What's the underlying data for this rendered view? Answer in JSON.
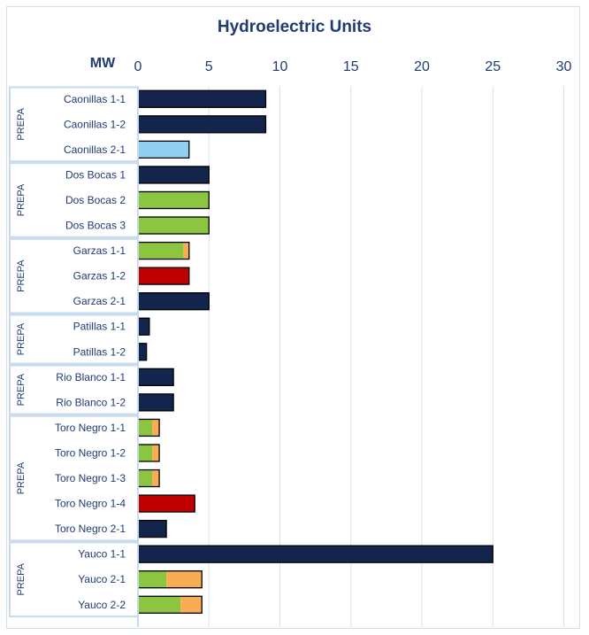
{
  "chart_data": {
    "type": "bar",
    "orientation": "horizontal",
    "stacked": true,
    "title": "Hydroelectric Units",
    "xlabel": "MW",
    "xlim": [
      0,
      30
    ],
    "xticks": [
      0,
      5,
      10,
      15,
      20,
      25,
      30
    ],
    "grid": true,
    "groups": [
      {
        "label": "PREPA",
        "categories": [
          "Caonillas 1-1",
          "Caonillas 1-2",
          "Caonillas 2-1"
        ]
      },
      {
        "label": "PREPA",
        "categories": [
          "Dos Bocas 1",
          "Dos Bocas 2",
          "Dos Bocas 3"
        ]
      },
      {
        "label": "PREPA",
        "categories": [
          "Garzas 1-1",
          "Garzas 1-2",
          "Garzas 2-1"
        ]
      },
      {
        "label": "PREPA",
        "categories": [
          "Patillas 1-1",
          "Patillas 1-2"
        ]
      },
      {
        "label": "PREPA",
        "categories": [
          "Rio Blanco 1-1",
          "Rio Blanco 1-2"
        ]
      },
      {
        "label": "PREPA",
        "categories": [
          "Toro Negro 1-1",
          "Toro Negro 1-2",
          "Toro Negro 1-3",
          "Toro Negro 1-4",
          "Toro Negro 2-1"
        ]
      },
      {
        "label": "PREPA",
        "categories": [
          "Yauco 1-1",
          "Yauco 2-1",
          "Yauco 2-2"
        ]
      }
    ],
    "colors": {
      "navy": "#13254d",
      "light_blue": "#8fd0f2",
      "green": "#8cc540",
      "orange": "#f8ad55",
      "red": "#c00000"
    },
    "bars": [
      {
        "category": "Caonillas 1-1",
        "segments": [
          {
            "value": 9,
            "color": "navy"
          }
        ]
      },
      {
        "category": "Caonillas 1-2",
        "segments": [
          {
            "value": 9,
            "color": "navy"
          }
        ]
      },
      {
        "category": "Caonillas 2-1",
        "segments": [
          {
            "value": 3.6,
            "color": "light_blue"
          }
        ]
      },
      {
        "category": "Dos Bocas 1",
        "segments": [
          {
            "value": 5,
            "color": "navy"
          }
        ]
      },
      {
        "category": "Dos Bocas 2",
        "segments": [
          {
            "value": 5,
            "color": "green"
          }
        ]
      },
      {
        "category": "Dos Bocas 3",
        "segments": [
          {
            "value": 5,
            "color": "green"
          }
        ]
      },
      {
        "category": "Garzas 1-1",
        "segments": [
          {
            "value": 3.2,
            "color": "green"
          },
          {
            "value": 0.4,
            "color": "orange"
          }
        ]
      },
      {
        "category": "Garzas 1-2",
        "segments": [
          {
            "value": 3.6,
            "color": "red"
          }
        ]
      },
      {
        "category": "Garzas 2-1",
        "segments": [
          {
            "value": 5,
            "color": "navy"
          }
        ]
      },
      {
        "category": "Patillas 1-1",
        "segments": [
          {
            "value": 0.8,
            "color": "navy"
          }
        ]
      },
      {
        "category": "Patillas 1-2",
        "segments": [
          {
            "value": 0.6,
            "color": "navy"
          }
        ]
      },
      {
        "category": "Rio Blanco 1-1",
        "segments": [
          {
            "value": 2.5,
            "color": "navy"
          }
        ]
      },
      {
        "category": "Rio Blanco 1-2",
        "segments": [
          {
            "value": 2.5,
            "color": "navy"
          }
        ]
      },
      {
        "category": "Toro Negro 1-1",
        "segments": [
          {
            "value": 1.0,
            "color": "green"
          },
          {
            "value": 0.5,
            "color": "orange"
          }
        ]
      },
      {
        "category": "Toro Negro 1-2",
        "segments": [
          {
            "value": 1.0,
            "color": "green"
          },
          {
            "value": 0.5,
            "color": "orange"
          }
        ]
      },
      {
        "category": "Toro Negro 1-3",
        "segments": [
          {
            "value": 1.0,
            "color": "green"
          },
          {
            "value": 0.5,
            "color": "orange"
          }
        ]
      },
      {
        "category": "Toro Negro 1-4",
        "segments": [
          {
            "value": 4.0,
            "color": "red"
          }
        ]
      },
      {
        "category": "Toro Negro 2-1",
        "segments": [
          {
            "value": 2.0,
            "color": "navy"
          }
        ]
      },
      {
        "category": "Yauco 1-1",
        "segments": [
          {
            "value": 25,
            "color": "navy"
          }
        ]
      },
      {
        "category": "Yauco 2-1",
        "segments": [
          {
            "value": 2.0,
            "color": "green"
          },
          {
            "value": 2.5,
            "color": "orange"
          }
        ]
      },
      {
        "category": "Yauco 2-2",
        "segments": [
          {
            "value": 3.0,
            "color": "green"
          },
          {
            "value": 1.5,
            "color": "orange"
          }
        ]
      }
    ]
  }
}
